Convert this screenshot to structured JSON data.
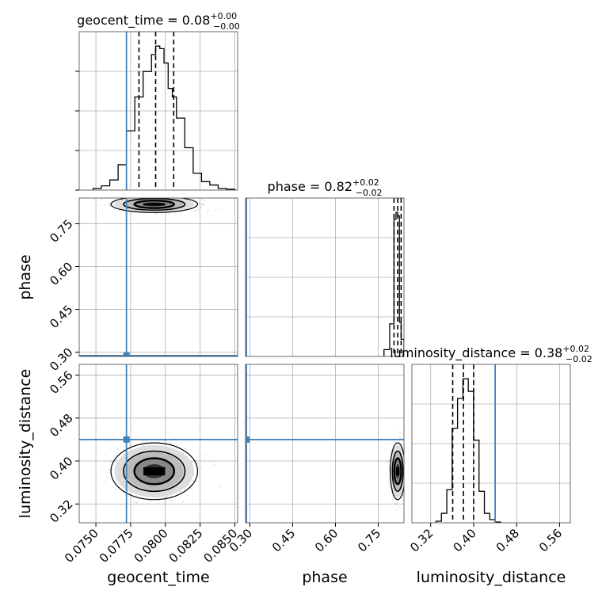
{
  "chart_data": {
    "type": "corner",
    "parameters": [
      "geocent_time",
      "phase",
      "luminosity_distance"
    ],
    "axis_labels": {
      "geocent_time": "geocent_time",
      "phase": "phase",
      "luminosity_distance": "luminosity_distance"
    },
    "ranges": {
      "geocent_time": [
        0.0738,
        0.0852
      ],
      "phase": [
        0.285,
        0.84
      ],
      "luminosity_distance": [
        0.285,
        0.58
      ]
    },
    "ticks": {
      "geocent_time": [
        {
          "v": 0.075,
          "label": "0.0750"
        },
        {
          "v": 0.0775,
          "label": "0.0775"
        },
        {
          "v": 0.08,
          "label": "0.0800"
        },
        {
          "v": 0.0825,
          "label": "0.0825"
        },
        {
          "v": 0.085,
          "label": "0.0850"
        }
      ],
      "phase": [
        {
          "v": 0.3,
          "label": "0.30"
        },
        {
          "v": 0.45,
          "label": "0.45"
        },
        {
          "v": 0.6,
          "label": "0.60"
        },
        {
          "v": 0.75,
          "label": "0.75"
        }
      ],
      "luminosity_distance": [
        {
          "v": 0.32,
          "label": "0.32"
        },
        {
          "v": 0.4,
          "label": "0.40"
        },
        {
          "v": 0.48,
          "label": "0.48"
        },
        {
          "v": 0.56,
          "label": "0.56"
        }
      ]
    },
    "truths": {
      "geocent_time": 0.0772,
      "phase": 0.288,
      "luminosity_distance": 0.44
    },
    "titles": [
      {
        "param": "geocent_time",
        "name": "geocent_time",
        "value": "0.08",
        "plus": "+0.00",
        "minus": "−0.00"
      },
      {
        "param": "phase",
        "name": "phase",
        "value": "0.82",
        "plus": "+0.02",
        "minus": "−0.02"
      },
      {
        "param": "luminosity_distance",
        "name": "luminosity_distance",
        "value": "0.38",
        "plus": "+0.02",
        "minus": "−0.02"
      }
    ],
    "quantiles": {
      "geocent_time": [
        0.0781,
        0.0793,
        0.0806
      ],
      "phase": [
        0.805,
        0.818,
        0.83
      ],
      "luminosity_distance": [
        0.361,
        0.381,
        0.4
      ]
    },
    "marginals": {
      "geocent_time": {
        "edges": [
          0.0748,
          0.0754,
          0.076,
          0.0766,
          0.0772,
          0.0778,
          0.0784,
          0.079,
          0.0793,
          0.0796,
          0.0799,
          0.0802,
          0.0805,
          0.0808,
          0.0814,
          0.082,
          0.0826,
          0.0832,
          0.0838,
          0.0844,
          0.085
        ],
        "counts": [
          2,
          5,
          12,
          30,
          70,
          110,
          140,
          160,
          170,
          167,
          150,
          120,
          110,
          85,
          50,
          20,
          10,
          6,
          2,
          1
        ]
      },
      "phase": {
        "edges": [
          0.77,
          0.79,
          0.805,
          0.812,
          0.818,
          0.824,
          0.83,
          0.84
        ],
        "counts": [
          20,
          95,
          400,
          420,
          410,
          100,
          50
        ]
      },
      "luminosity_distance": {
        "edges": [
          0.33,
          0.34,
          0.35,
          0.36,
          0.37,
          0.38,
          0.39,
          0.4,
          0.41,
          0.42,
          0.43,
          0.44,
          0.45
        ],
        "counts": [
          2,
          12,
          42,
          120,
          158,
          183,
          167,
          105,
          40,
          12,
          4,
          1
        ]
      }
    },
    "pairs": [
      {
        "x": "geocent_time",
        "y": "phase",
        "cx": 0.0792,
        "cy": 0.818,
        "sx": 0.0013,
        "sy": 0.012
      },
      {
        "x": "geocent_time",
        "y": "luminosity_distance",
        "cx": 0.0792,
        "cy": 0.381,
        "sx": 0.0013,
        "sy": 0.022
      },
      {
        "x": "phase",
        "y": "luminosity_distance",
        "cx": 0.818,
        "cy": 0.381,
        "sx": 0.011,
        "sy": 0.022
      }
    ],
    "colors": {
      "truth": "#4682b4",
      "hist": "#000000",
      "grid": "#b0b0b0"
    }
  }
}
